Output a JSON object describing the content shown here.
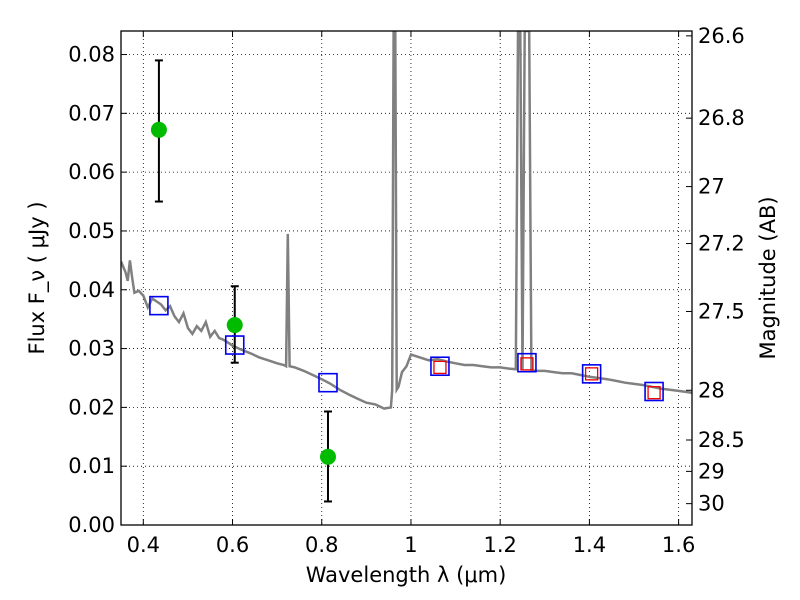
{
  "chart_data": {
    "type": "scatter",
    "xlabel": "Wavelength  λ (μm)",
    "ylabel": "Flux  F_ν  ( μJy )",
    "y2label": "Magnitude (AB)",
    "xlim": [
      0.35,
      1.63
    ],
    "ylim": [
      0.0,
      0.084
    ],
    "grid": true,
    "x_ticks": [
      0.4,
      0.6,
      0.8,
      1.0,
      1.2,
      1.4,
      1.6
    ],
    "x_tick_labels": [
      "0.4",
      "0.6",
      "0.8",
      "1",
      "1.2",
      "1.4",
      "1.6"
    ],
    "y_ticks": [
      0.0,
      0.01,
      0.02,
      0.03,
      0.04,
      0.05,
      0.06,
      0.07,
      0.08
    ],
    "y_tick_labels": [
      "0.00",
      "0.01",
      "0.02",
      "0.03",
      "0.04",
      "0.05",
      "0.06",
      "0.07",
      "0.08"
    ],
    "y2_tick_labels": [
      "26.6",
      "26.8",
      "27",
      "27.2",
      "27.5",
      "28",
      "28.5",
      "29",
      "30"
    ],
    "colors": {
      "spectrum": "#808080",
      "observed": "#00bb00",
      "errorbar": "#000000",
      "model_blue": "#0000ee",
      "model_red": "#ee0000"
    },
    "spectrum": [
      [
        0.35,
        0.0448
      ],
      [
        0.36,
        0.043
      ],
      [
        0.365,
        0.0415
      ],
      [
        0.37,
        0.045
      ],
      [
        0.375,
        0.042
      ],
      [
        0.38,
        0.0395
      ],
      [
        0.39,
        0.0398
      ],
      [
        0.4,
        0.039
      ],
      [
        0.41,
        0.037
      ],
      [
        0.42,
        0.0385
      ],
      [
        0.43,
        0.038
      ],
      [
        0.44,
        0.0375
      ],
      [
        0.45,
        0.0365
      ],
      [
        0.46,
        0.0372
      ],
      [
        0.47,
        0.0355
      ],
      [
        0.48,
        0.0345
      ],
      [
        0.49,
        0.036
      ],
      [
        0.5,
        0.0335
      ],
      [
        0.51,
        0.0325
      ],
      [
        0.52,
        0.0338
      ],
      [
        0.53,
        0.033
      ],
      [
        0.54,
        0.0345
      ],
      [
        0.55,
        0.032
      ],
      [
        0.56,
        0.033
      ],
      [
        0.57,
        0.0318
      ],
      [
        0.58,
        0.0315
      ],
      [
        0.59,
        0.031
      ],
      [
        0.6,
        0.0305
      ],
      [
        0.62,
        0.0298
      ],
      [
        0.64,
        0.0292
      ],
      [
        0.66,
        0.0285
      ],
      [
        0.68,
        0.028
      ],
      [
        0.7,
        0.0275
      ],
      [
        0.715,
        0.0272
      ],
      [
        0.72,
        0.027
      ],
      [
        0.724,
        0.0495
      ],
      [
        0.728,
        0.027
      ],
      [
        0.74,
        0.0268
      ],
      [
        0.76,
        0.0262
      ],
      [
        0.78,
        0.0255
      ],
      [
        0.8,
        0.0248
      ],
      [
        0.82,
        0.024
      ],
      [
        0.84,
        0.023
      ],
      [
        0.86,
        0.0222
      ],
      [
        0.88,
        0.0215
      ],
      [
        0.9,
        0.0208
      ],
      [
        0.92,
        0.0205
      ],
      [
        0.94,
        0.0198
      ],
      [
        0.955,
        0.02
      ],
      [
        0.958,
        0.023
      ],
      [
        0.961,
        0.084
      ],
      [
        0.965,
        0.084
      ],
      [
        0.968,
        0.023
      ],
      [
        0.972,
        0.0235
      ],
      [
        0.98,
        0.026
      ],
      [
        0.99,
        0.027
      ],
      [
        1.0,
        0.029
      ],
      [
        1.02,
        0.0285
      ],
      [
        1.04,
        0.028
      ],
      [
        1.06,
        0.0282
      ],
      [
        1.08,
        0.0278
      ],
      [
        1.1,
        0.0275
      ],
      [
        1.12,
        0.0272
      ],
      [
        1.14,
        0.0272
      ],
      [
        1.16,
        0.027
      ],
      [
        1.18,
        0.0268
      ],
      [
        1.2,
        0.0268
      ],
      [
        1.22,
        0.0266
      ],
      [
        1.235,
        0.0265
      ],
      [
        1.24,
        0.084
      ],
      [
        1.245,
        0.084
      ],
      [
        1.25,
        0.0265
      ],
      [
        1.255,
        0.084
      ],
      [
        1.265,
        0.084
      ],
      [
        1.27,
        0.0263
      ],
      [
        1.28,
        0.0262
      ],
      [
        1.3,
        0.0262
      ],
      [
        1.32,
        0.026
      ],
      [
        1.34,
        0.0258
      ],
      [
        1.36,
        0.0258
      ],
      [
        1.38,
        0.0255
      ],
      [
        1.4,
        0.0252
      ],
      [
        1.42,
        0.025
      ],
      [
        1.44,
        0.0248
      ],
      [
        1.46,
        0.0245
      ],
      [
        1.48,
        0.0242
      ],
      [
        1.5,
        0.024
      ],
      [
        1.52,
        0.0238
      ],
      [
        1.54,
        0.0235
      ],
      [
        1.56,
        0.0232
      ],
      [
        1.58,
        0.023
      ],
      [
        1.6,
        0.0228
      ],
      [
        1.63,
        0.0225
      ]
    ],
    "observed": [
      {
        "x": 0.435,
        "y": 0.0672,
        "yerr_low": 0.055,
        "yerr_high": 0.079
      },
      {
        "x": 0.605,
        "y": 0.034,
        "yerr_low": 0.0276,
        "yerr_high": 0.0406
      },
      {
        "x": 0.814,
        "y": 0.0116,
        "yerr_low": 0.004,
        "yerr_high": 0.0193
      }
    ],
    "model_blue": [
      {
        "x": 0.435,
        "y": 0.0373
      },
      {
        "x": 0.605,
        "y": 0.0306
      },
      {
        "x": 0.814,
        "y": 0.0242
      },
      {
        "x": 1.065,
        "y": 0.027
      },
      {
        "x": 1.26,
        "y": 0.0276
      },
      {
        "x": 1.405,
        "y": 0.0257
      },
      {
        "x": 1.545,
        "y": 0.0227
      }
    ],
    "model_red": [
      {
        "x": 1.065,
        "y": 0.0268
      },
      {
        "x": 1.26,
        "y": 0.0274
      },
      {
        "x": 1.405,
        "y": 0.0257
      },
      {
        "x": 1.545,
        "y": 0.0225
      }
    ]
  }
}
